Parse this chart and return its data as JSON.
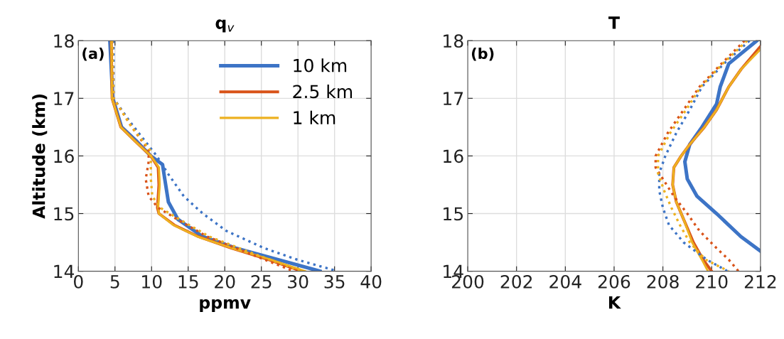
{
  "chart_data": [
    {
      "type": "line",
      "title": "q$_{v}$",
      "xlabel": "ppmv",
      "ylabel": "Altitude (km)",
      "xlim": [
        0,
        40
      ],
      "xticks": [
        0,
        5,
        10,
        15,
        20,
        25,
        30,
        35,
        40
      ],
      "ylim": [
        14,
        18
      ],
      "yticks": [
        14,
        15,
        16,
        17,
        18
      ],
      "grid": true,
      "legend": "top right",
      "annotations": [
        "(a)"
      ],
      "series": [
        {
          "name": "10 km",
          "color": "#3d74c6",
          "line_style": "solid",
          "x": [
            4.3,
            4.7,
            5.9,
            8.0,
            9.9,
            11.5,
            11.8,
            12.3,
            13.6,
            17.0,
            21.5,
            27.3,
            33.0
          ],
          "values": [
            18,
            17,
            16.5,
            16.25,
            16,
            15.85,
            15.6,
            15.2,
            14.9,
            14.6,
            14.4,
            14.2,
            14
          ]
        },
        {
          "name": "2.5 km",
          "color": "#d95319",
          "line_style": "solid",
          "x": [
            4.5,
            4.6,
            5.8,
            7.8,
            9.9,
            10.9,
            11.0,
            10.8,
            11.0,
            13.1,
            16.4,
            20.9,
            26.0,
            30.5
          ],
          "values": [
            18,
            17,
            16.5,
            16.25,
            16,
            15.8,
            15.5,
            15.1,
            15.0,
            14.8,
            14.6,
            14.4,
            14.2,
            14
          ]
        },
        {
          "name": "1 km",
          "color": "#edb120",
          "line_style": "solid",
          "x": [
            4.5,
            4.6,
            5.8,
            7.8,
            9.9,
            11.0,
            11.1,
            10.9,
            11.0,
            13.0,
            16.3,
            21.0,
            26.3,
            31.0
          ],
          "values": [
            18,
            17,
            16.5,
            16.25,
            16,
            15.8,
            15.5,
            15.1,
            15.0,
            14.8,
            14.6,
            14.4,
            14.2,
            14
          ]
        },
        {
          "color": "#3d74c6",
          "line_style": "dotted",
          "x": [
            4.8,
            4.8,
            7.0,
            10.7,
            12.2,
            14.4,
            17.0,
            20.2,
            25.4,
            29.9,
            35.4
          ],
          "values": [
            18,
            17,
            16.6,
            16,
            15.7,
            15.3,
            15.0,
            14.7,
            14.4,
            14.2,
            14
          ]
        },
        {
          "color": "#d95319",
          "line_style": "dotted",
          "x": [
            4.6,
            4.8,
            7.3,
            9.6,
            9.6,
            9.2,
            9.6,
            10.9,
            13.5,
            17.6,
            23.5,
            29.4
          ],
          "values": [
            18,
            17,
            16.5,
            16.1,
            15.9,
            15.6,
            15.3,
            15.1,
            14.9,
            14.6,
            14.3,
            14
          ]
        },
        {
          "color": "#edb120",
          "line_style": "dotted",
          "x": [
            4.6,
            4.8,
            7.3,
            9.8,
            9.9,
            9.9,
            10.1,
            11.2,
            13.8,
            17.9,
            24.0,
            30.5
          ],
          "values": [
            18,
            17,
            16.5,
            16.1,
            15.9,
            15.6,
            15.3,
            15.1,
            14.9,
            14.6,
            14.3,
            14
          ]
        }
      ]
    },
    {
      "type": "line",
      "title": "T",
      "xlabel": "K",
      "xlim": [
        200,
        212
      ],
      "xticks": [
        200,
        202,
        204,
        206,
        208,
        210,
        212
      ],
      "ylim": [
        14,
        18
      ],
      "yticks": [
        14,
        15,
        16,
        17,
        18
      ],
      "grid": true,
      "annotations": [
        "(b)"
      ],
      "series": [
        {
          "color": "#3d74c6",
          "line_style": "solid",
          "x": [
            211.85,
            210.7,
            210.35,
            210.2,
            209.6,
            209.1,
            208.9,
            209.0,
            209.4,
            210.2,
            211.2,
            212.0
          ],
          "values": [
            18,
            17.6,
            17.2,
            16.9,
            16.5,
            16.2,
            15.9,
            15.6,
            15.3,
            15,
            14.6,
            14.35
          ]
        },
        {
          "color": "#d95319",
          "line_style": "solid",
          "x": [
            212.0,
            211.2,
            210.7,
            210.2,
            209.7,
            209.1,
            208.75,
            208.45,
            208.4,
            208.55,
            208.85,
            209.25,
            209.65,
            210.0
          ],
          "values": [
            17.9,
            17.5,
            17.2,
            16.8,
            16.5,
            16.2,
            16.0,
            15.8,
            15.5,
            15.2,
            14.9,
            14.5,
            14.2,
            14
          ]
        },
        {
          "color": "#edb120",
          "line_style": "solid",
          "x": [
            212.0,
            211.2,
            210.7,
            210.2,
            209.7,
            209.1,
            208.75,
            208.45,
            208.4,
            208.55,
            208.85,
            209.2,
            209.6,
            209.85
          ],
          "values": [
            17.85,
            17.5,
            17.2,
            16.8,
            16.5,
            16.2,
            16.0,
            15.8,
            15.5,
            15.2,
            14.9,
            14.5,
            14.2,
            14
          ]
        },
        {
          "color": "#3d74c6",
          "line_style": "dotted",
          "x": [
            211.55,
            210.5,
            209.6,
            209.1,
            208.55,
            208.1,
            207.85,
            207.85,
            208.0,
            208.25,
            208.85,
            209.8,
            210.65
          ],
          "values": [
            18,
            17.6,
            17.2,
            16.8,
            16.4,
            16.0,
            15.7,
            15.4,
            15.1,
            14.8,
            14.5,
            14.2,
            14
          ]
        },
        {
          "color": "#d95319",
          "line_style": "dotted",
          "x": [
            211.35,
            210.4,
            209.5,
            208.85,
            208.2,
            207.7,
            207.7,
            208.0,
            208.45,
            209.0,
            209.5,
            210.2,
            210.7,
            211.1
          ],
          "values": [
            18,
            17.6,
            17.2,
            16.8,
            16.4,
            16.0,
            15.8,
            15.6,
            15.3,
            15.0,
            14.7,
            14.4,
            14.2,
            14
          ]
        },
        {
          "color": "#edb120",
          "line_style": "dotted",
          "x": [
            211.45,
            210.45,
            209.55,
            208.95,
            208.3,
            207.8,
            207.8,
            208.05,
            208.35,
            208.7,
            209.1,
            209.75,
            210.7
          ],
          "values": [
            18,
            17.6,
            17.2,
            16.8,
            16.4,
            16.0,
            15.7,
            15.4,
            15.1,
            14.8,
            14.5,
            14.2,
            14
          ]
        }
      ]
    }
  ]
}
